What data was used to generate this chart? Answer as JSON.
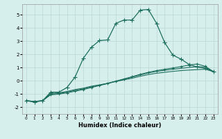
{
  "xlabel": "Humidex (Indice chaleur)",
  "ylabel": "",
  "xlim": [
    -0.5,
    23.5
  ],
  "ylim": [
    -2.5,
    5.8
  ],
  "yticks": [
    -2,
    -1,
    0,
    1,
    2,
    3,
    4,
    5
  ],
  "xticks": [
    0,
    1,
    2,
    3,
    4,
    5,
    6,
    7,
    8,
    9,
    10,
    11,
    12,
    13,
    14,
    15,
    16,
    17,
    18,
    19,
    20,
    21,
    22,
    23
  ],
  "background_color": "#d6efec",
  "grid_color": "#b8d8d4",
  "line_color": "#1e6e5e",
  "line1_x": [
    0,
    1,
    2,
    3,
    4,
    5,
    6,
    7,
    8,
    9,
    10,
    11,
    12,
    13,
    14,
    15,
    16,
    17,
    18,
    19,
    20,
    21,
    22,
    23
  ],
  "line1_y": [
    -1.5,
    -1.6,
    -1.5,
    -0.85,
    -0.85,
    -0.5,
    0.3,
    1.7,
    2.55,
    3.05,
    3.1,
    4.35,
    4.6,
    4.6,
    5.35,
    5.4,
    4.35,
    2.9,
    1.95,
    1.65,
    1.25,
    1.05,
    0.95,
    0.7
  ],
  "line2_x": [
    0,
    1,
    2,
    3,
    4,
    5,
    6,
    7,
    8,
    9,
    10,
    11,
    12,
    13,
    14,
    15,
    16,
    17,
    18,
    19,
    20,
    21,
    22,
    23
  ],
  "line2_y": [
    -1.5,
    -1.55,
    -1.5,
    -0.95,
    -0.9,
    -0.8,
    -0.65,
    -0.55,
    -0.4,
    -0.3,
    -0.18,
    -0.05,
    0.08,
    0.2,
    0.35,
    0.48,
    0.58,
    0.65,
    0.72,
    0.78,
    0.82,
    0.85,
    0.88,
    0.7
  ],
  "line3_x": [
    0,
    1,
    2,
    3,
    4,
    5,
    6,
    7,
    8,
    9,
    10,
    11,
    12,
    13,
    14,
    15,
    16,
    17,
    18,
    19,
    20,
    21,
    22,
    23
  ],
  "line3_y": [
    -1.5,
    -1.55,
    -1.5,
    -1.0,
    -0.95,
    -0.85,
    -0.72,
    -0.6,
    -0.45,
    -0.32,
    -0.18,
    -0.02,
    0.12,
    0.28,
    0.45,
    0.6,
    0.72,
    0.8,
    0.88,
    0.95,
    1.02,
    1.08,
    1.05,
    0.7
  ],
  "line4_x": [
    0,
    1,
    2,
    3,
    4,
    5,
    6,
    7,
    8,
    9,
    10,
    11,
    12,
    13,
    14,
    15,
    16,
    17,
    18,
    19,
    20,
    21,
    22,
    23
  ],
  "line4_y": [
    -1.5,
    -1.55,
    -1.5,
    -1.05,
    -1.0,
    -0.9,
    -0.78,
    -0.65,
    -0.5,
    -0.35,
    -0.2,
    -0.02,
    0.15,
    0.32,
    0.5,
    0.65,
    0.78,
    0.88,
    0.98,
    1.08,
    1.2,
    1.28,
    1.1,
    0.7
  ]
}
